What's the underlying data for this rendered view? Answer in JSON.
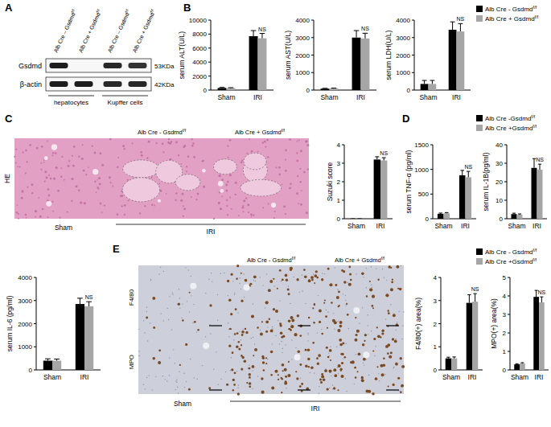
{
  "chart_data": [
    {
      "type": "bar",
      "y_label": "serum ALT(U/L)",
      "categories": [
        "Sham",
        "IRI"
      ],
      "series": [
        {
          "color": "#000000",
          "values": [
            300,
            7700
          ],
          "errors": [
            80,
            800
          ]
        },
        {
          "color": "#a6a6a6",
          "values": [
            280,
            7400
          ],
          "errors": [
            60,
            700
          ]
        }
      ],
      "ylim": [
        0,
        10000
      ],
      "yticks": [
        0,
        2000,
        4000,
        6000,
        8000,
        10000
      ],
      "annotations": [
        {
          "text": "NS",
          "series": 1,
          "category": 1
        }
      ]
    },
    {
      "type": "bar",
      "y_label": "serum AST(U/L)",
      "categories": [
        "Sham",
        "IRI"
      ],
      "series": [
        {
          "color": "#000000",
          "values": [
            80,
            3000
          ],
          "errors": [
            20,
            400
          ]
        },
        {
          "color": "#a6a6a6",
          "values": [
            90,
            2950
          ],
          "errors": [
            20,
            300
          ]
        }
      ],
      "ylim": [
        0,
        4000
      ],
      "yticks": [
        0,
        1000,
        2000,
        3000,
        4000
      ],
      "annotations": [
        {
          "text": "NS",
          "series": 1,
          "category": 1
        }
      ]
    },
    {
      "type": "bar",
      "y_label": "serum LDH(U/L)",
      "categories": [
        "Sham",
        "IRI"
      ],
      "series": [
        {
          "name": "Alb Cre - Gsdmdf/f",
          "color": "#000000",
          "values": [
            350,
            3450
          ],
          "errors": [
            200,
            450
          ]
        },
        {
          "name": "Alb Cre + Gsdmdf/f",
          "color": "#a6a6a6",
          "values": [
            350,
            3350
          ],
          "errors": [
            200,
            450
          ]
        }
      ],
      "ylim": [
        0,
        4000
      ],
      "yticks": [
        0,
        1000,
        2000,
        3000,
        4000
      ],
      "legend": "upper right",
      "annotations": [
        {
          "text": "NS",
          "series": 1,
          "category": 1
        }
      ]
    },
    {
      "type": "bar",
      "y_label": "Suzuki score",
      "categories": [
        "Sham",
        "IRI"
      ],
      "series": [
        {
          "color": "#000000",
          "values": [
            0,
            3.2
          ],
          "errors": [
            0,
            0.15
          ]
        },
        {
          "color": "#a6a6a6",
          "values": [
            0,
            3.15
          ],
          "errors": [
            0,
            0.15
          ]
        }
      ],
      "ylim": [
        0,
        4
      ],
      "yticks": [
        0,
        1,
        2,
        3,
        4
      ],
      "annotations": [
        {
          "text": "NS",
          "series": 1,
          "category": 1
        }
      ]
    },
    {
      "type": "bar",
      "y_label": "serum TNF-α (pg/ml)",
      "categories": [
        "Sham",
        "IRI"
      ],
      "series": [
        {
          "color": "#000000",
          "values": [
            100,
            880
          ],
          "errors": [
            15,
            100
          ]
        },
        {
          "color": "#a6a6a6",
          "values": [
            110,
            840
          ],
          "errors": [
            15,
            120
          ]
        }
      ],
      "ylim": [
        0,
        1500
      ],
      "yticks": [
        0,
        500,
        1000,
        1500
      ],
      "annotations": [
        {
          "text": "NS",
          "series": 1,
          "category": 1
        }
      ]
    },
    {
      "type": "bar",
      "y_label": "serum IL-1B(pg/ml)",
      "categories": [
        "Sham",
        "IRI"
      ],
      "series": [
        {
          "name": "Alb Cre -Gsdmdf/f",
          "color": "#000000",
          "values": [
            2.5,
            27.5
          ],
          "errors": [
            0.5,
            5
          ]
        },
        {
          "name": "Alb Cre +Gsdmdf/f",
          "color": "#a6a6a6",
          "values": [
            2.2,
            26.5
          ],
          "errors": [
            0.4,
            3
          ]
        }
      ],
      "ylim": [
        0,
        40
      ],
      "yticks": [
        0,
        10,
        20,
        30,
        40
      ],
      "legend": "upper right",
      "annotations": [
        {
          "text": "NS",
          "series": 1,
          "category": 1
        }
      ]
    },
    {
      "type": "bar",
      "y_label": "serum IL-6 (pg/ml)",
      "categories": [
        "Sham",
        "IRI"
      ],
      "series": [
        {
          "color": "#000000",
          "values": [
            400,
            2850
          ],
          "errors": [
            80,
            250
          ]
        },
        {
          "color": "#a6a6a6",
          "values": [
            400,
            2750
          ],
          "errors": [
            70,
            200
          ]
        }
      ],
      "ylim": [
        0,
        4000
      ],
      "yticks": [
        0,
        1000,
        2000,
        3000,
        4000
      ],
      "annotations": [
        {
          "text": "NS",
          "series": 1,
          "category": 1
        }
      ]
    },
    {
      "type": "bar",
      "y_label": "F4/80(+) area(%)",
      "categories": [
        "Sham",
        "IRI"
      ],
      "series": [
        {
          "color": "#000000",
          "values": [
            0.5,
            2.9
          ],
          "errors": [
            0.05,
            0.35
          ]
        },
        {
          "color": "#a6a6a6",
          "values": [
            0.5,
            2.95
          ],
          "errors": [
            0.06,
            0.35
          ]
        }
      ],
      "ylim": [
        0,
        4
      ],
      "yticks": [
        0,
        1,
        2,
        3,
        4
      ],
      "annotations": [
        {
          "text": "NS",
          "series": 1,
          "category": 1
        }
      ]
    },
    {
      "type": "bar",
      "y_label": "MPO(+) area(%)",
      "categories": [
        "Sham",
        "IRI"
      ],
      "series": [
        {
          "name": "Alb Cre - Gsdmdf/f",
          "color": "#000000",
          "values": [
            0.3,
            3.95
          ],
          "errors": [
            0.03,
            0.35
          ]
        },
        {
          "name": "Alb Cre +Gsdmdf/f",
          "color": "#a6a6a6",
          "values": [
            0.35,
            3.65
          ],
          "errors": [
            0.04,
            0.3
          ]
        }
      ],
      "ylim": [
        0,
        5
      ],
      "yticks": [
        0,
        1,
        2,
        3,
        4,
        5
      ],
      "legend": "upper right",
      "annotations": [
        {
          "text": "NS",
          "series": 1,
          "category": 1
        }
      ]
    }
  ],
  "figure": {
    "panel_labels": [
      "A",
      "B",
      "C",
      "D",
      "E"
    ],
    "blot": {
      "lanes": [
        "Alb Cre – Gsdmdf/f",
        "Alb Cre + Gsdmdf/f",
        "Alb Cre – Gsdmdf/f",
        "Alb Cre + Gsdmdf/f"
      ],
      "rows": [
        {
          "label": "Gsdmd",
          "size": "53KDa",
          "intensity": [
            0.95,
            0,
            0.9,
            0.85
          ]
        },
        {
          "label": "β-actin",
          "size": "42KDa",
          "intensity": [
            0.95,
            0.95,
            0.9,
            0.9
          ]
        }
      ],
      "groups": [
        {
          "label": "hepatocytes",
          "lanes": [
            0,
            1
          ]
        },
        {
          "label": "Kupffer cells",
          "lanes": [
            2,
            3
          ]
        }
      ]
    },
    "he": {
      "row_label": "HE",
      "headers": [
        "Alb Cre - Gsdmdf/f",
        "Alb Cre + Gsdmdf/f"
      ],
      "groups": [
        {
          "label": "Sham",
          "columns": [
            0
          ]
        },
        {
          "label": "IRI",
          "columns": [
            1,
            2
          ]
        }
      ]
    },
    "ihc": {
      "row_labels": [
        "F4/80",
        "MPO"
      ],
      "headers": [
        "Alb Cre - Gsdmdf/f",
        "Alb Cre + Gsdmdf/f"
      ],
      "groups": [
        {
          "label": "Sham",
          "columns": [
            0
          ]
        },
        {
          "label": "IRI",
          "columns": [
            1,
            2
          ]
        }
      ]
    }
  }
}
